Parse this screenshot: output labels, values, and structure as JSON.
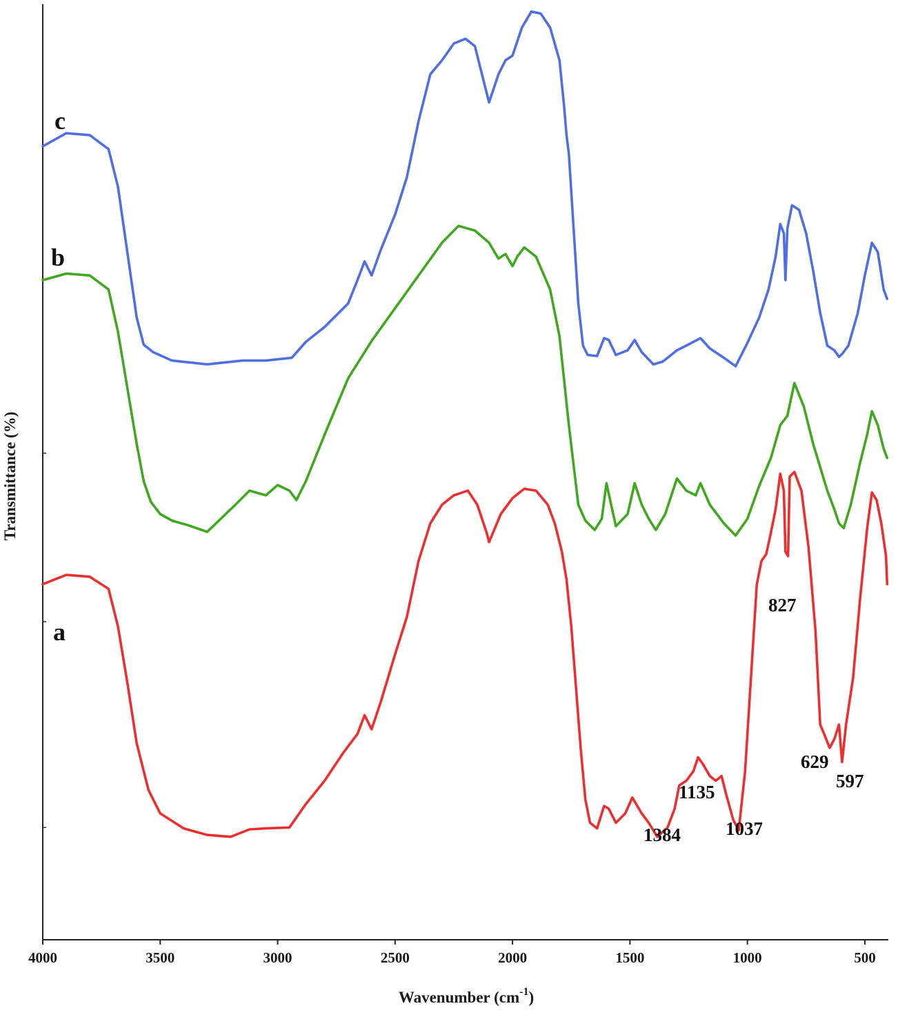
{
  "chart_data": {
    "type": "line",
    "xlabel": "Wavenumber (cm",
    "xlabel_sup": "-1",
    "xlabel_end": ")",
    "ylabel": "Transmittance (%)",
    "xlim": [
      4000,
      400
    ],
    "x_reversed": true,
    "xticks": [
      4000,
      3500,
      3000,
      2500,
      2000,
      1500,
      1000,
      500
    ],
    "xtick_labels": [
      "4000",
      "3500",
      "3000",
      "2500",
      "2000",
      "1500",
      "1000",
      "500"
    ],
    "ylim": [
      0,
      100
    ],
    "grid": false,
    "series": [
      {
        "name": "c",
        "color": "#4f6ee6",
        "points": [
          [
            4000,
            84.8
          ],
          [
            3900,
            86.2
          ],
          [
            3800,
            86.0
          ],
          [
            3720,
            84.5
          ],
          [
            3680,
            80.5
          ],
          [
            3640,
            73.5
          ],
          [
            3600,
            66.5
          ],
          [
            3570,
            63.6
          ],
          [
            3530,
            62.8
          ],
          [
            3450,
            61.9
          ],
          [
            3300,
            61.5
          ],
          [
            3150,
            61.9
          ],
          [
            3050,
            61.9
          ],
          [
            2940,
            62.2
          ],
          [
            2880,
            63.9
          ],
          [
            2800,
            65.5
          ],
          [
            2700,
            68.0
          ],
          [
            2660,
            70.5
          ],
          [
            2630,
            72.5
          ],
          [
            2600,
            71.0
          ],
          [
            2560,
            73.8
          ],
          [
            2500,
            77.5
          ],
          [
            2450,
            81.5
          ],
          [
            2400,
            87.5
          ],
          [
            2350,
            92.5
          ],
          [
            2300,
            94.0
          ],
          [
            2250,
            95.8
          ],
          [
            2200,
            96.3
          ],
          [
            2160,
            95.5
          ],
          [
            2120,
            91.5
          ],
          [
            2100,
            89.5
          ],
          [
            2060,
            92.5
          ],
          [
            2030,
            94.0
          ],
          [
            2000,
            94.5
          ],
          [
            1960,
            97.5
          ],
          [
            1920,
            99.2
          ],
          [
            1880,
            99.0
          ],
          [
            1840,
            97.5
          ],
          [
            1800,
            94.0
          ],
          [
            1780,
            89.0
          ],
          [
            1770,
            86.0
          ],
          [
            1760,
            84.0
          ],
          [
            1740,
            76.0
          ],
          [
            1720,
            68.0
          ],
          [
            1700,
            63.5
          ],
          [
            1680,
            62.5
          ],
          [
            1640,
            62.4
          ],
          [
            1610,
            64.3
          ],
          [
            1590,
            64.1
          ],
          [
            1560,
            62.5
          ],
          [
            1510,
            63.0
          ],
          [
            1480,
            64.1
          ],
          [
            1450,
            62.8
          ],
          [
            1400,
            61.5
          ],
          [
            1360,
            61.8
          ],
          [
            1300,
            63.0
          ],
          [
            1260,
            63.5
          ],
          [
            1200,
            64.3
          ],
          [
            1160,
            63.2
          ],
          [
            1100,
            62.2
          ],
          [
            1050,
            61.3
          ],
          [
            1000,
            63.8
          ],
          [
            950,
            66.5
          ],
          [
            910,
            69.5
          ],
          [
            880,
            73.0
          ],
          [
            860,
            76.5
          ],
          [
            845,
            75.5
          ],
          [
            838,
            70.5
          ],
          [
            830,
            76.0
          ],
          [
            810,
            78.5
          ],
          [
            780,
            78.0
          ],
          [
            750,
            75.5
          ],
          [
            720,
            71.5
          ],
          [
            690,
            67.0
          ],
          [
            660,
            63.5
          ],
          [
            630,
            63.0
          ],
          [
            610,
            62.3
          ],
          [
            597,
            62.6
          ],
          [
            570,
            63.5
          ],
          [
            530,
            67.0
          ],
          [
            500,
            71.0
          ],
          [
            470,
            74.5
          ],
          [
            445,
            73.5
          ],
          [
            420,
            69.5
          ],
          [
            405,
            68.5
          ]
        ]
      },
      {
        "name": "b",
        "color": "#3fa81e",
        "points": [
          [
            4000,
            70.5
          ],
          [
            3900,
            71.2
          ],
          [
            3800,
            71.0
          ],
          [
            3720,
            69.5
          ],
          [
            3680,
            65.0
          ],
          [
            3640,
            59.0
          ],
          [
            3600,
            53.0
          ],
          [
            3570,
            49.0
          ],
          [
            3540,
            46.8
          ],
          [
            3500,
            45.5
          ],
          [
            3450,
            44.8
          ],
          [
            3380,
            44.3
          ],
          [
            3300,
            43.6
          ],
          [
            3250,
            44.8
          ],
          [
            3180,
            46.5
          ],
          [
            3120,
            48.0
          ],
          [
            3050,
            47.5
          ],
          [
            3000,
            48.6
          ],
          [
            2950,
            48.0
          ],
          [
            2920,
            47.0
          ],
          [
            2880,
            49.0
          ],
          [
            2800,
            54.0
          ],
          [
            2700,
            60.0
          ],
          [
            2600,
            64.0
          ],
          [
            2500,
            67.5
          ],
          [
            2400,
            71.0
          ],
          [
            2300,
            74.5
          ],
          [
            2230,
            76.3
          ],
          [
            2160,
            75.8
          ],
          [
            2100,
            74.5
          ],
          [
            2060,
            72.8
          ],
          [
            2030,
            73.3
          ],
          [
            2000,
            72.0
          ],
          [
            1980,
            73.0
          ],
          [
            1950,
            74.0
          ],
          [
            1900,
            73.0
          ],
          [
            1840,
            69.5
          ],
          [
            1800,
            64.5
          ],
          [
            1760,
            55.0
          ],
          [
            1720,
            46.5
          ],
          [
            1690,
            44.8
          ],
          [
            1650,
            43.8
          ],
          [
            1620,
            45.0
          ],
          [
            1600,
            48.8
          ],
          [
            1580,
            46.5
          ],
          [
            1560,
            44.2
          ],
          [
            1510,
            45.5
          ],
          [
            1480,
            48.8
          ],
          [
            1450,
            46.5
          ],
          [
            1420,
            45.0
          ],
          [
            1390,
            43.8
          ],
          [
            1350,
            45.5
          ],
          [
            1300,
            49.3
          ],
          [
            1260,
            48.0
          ],
          [
            1220,
            47.5
          ],
          [
            1200,
            48.8
          ],
          [
            1160,
            46.5
          ],
          [
            1100,
            44.5
          ],
          [
            1050,
            43.2
          ],
          [
            1000,
            45.0
          ],
          [
            950,
            48.5
          ],
          [
            900,
            51.5
          ],
          [
            860,
            55.0
          ],
          [
            830,
            56.0
          ],
          [
            800,
            59.5
          ],
          [
            760,
            57.0
          ],
          [
            720,
            53.0
          ],
          [
            690,
            50.5
          ],
          [
            660,
            48.0
          ],
          [
            630,
            46.0
          ],
          [
            610,
            44.5
          ],
          [
            590,
            44.0
          ],
          [
            560,
            46.5
          ],
          [
            520,
            51.0
          ],
          [
            490,
            54.0
          ],
          [
            470,
            56.5
          ],
          [
            445,
            55.0
          ],
          [
            420,
            52.5
          ],
          [
            405,
            51.5
          ]
        ]
      },
      {
        "name": "a",
        "color": "#ee2e2e",
        "points": [
          [
            4000,
            38.0
          ],
          [
            3900,
            39.0
          ],
          [
            3800,
            38.8
          ],
          [
            3720,
            37.5
          ],
          [
            3680,
            33.5
          ],
          [
            3640,
            27.5
          ],
          [
            3600,
            21.0
          ],
          [
            3550,
            16.0
          ],
          [
            3500,
            13.5
          ],
          [
            3400,
            11.9
          ],
          [
            3300,
            11.2
          ],
          [
            3200,
            11.0
          ],
          [
            3120,
            11.8
          ],
          [
            3050,
            11.9
          ],
          [
            2950,
            12.0
          ],
          [
            2880,
            14.5
          ],
          [
            2800,
            17.0
          ],
          [
            2720,
            20.0
          ],
          [
            2660,
            22.0
          ],
          [
            2630,
            24.0
          ],
          [
            2600,
            22.5
          ],
          [
            2560,
            25.5
          ],
          [
            2500,
            30.5
          ],
          [
            2450,
            34.5
          ],
          [
            2400,
            40.5
          ],
          [
            2350,
            44.5
          ],
          [
            2300,
            46.5
          ],
          [
            2250,
            47.5
          ],
          [
            2190,
            48.0
          ],
          [
            2150,
            46.5
          ],
          [
            2110,
            43.5
          ],
          [
            2100,
            42.5
          ],
          [
            2050,
            45.5
          ],
          [
            2000,
            47.2
          ],
          [
            1950,
            48.2
          ],
          [
            1900,
            48.0
          ],
          [
            1850,
            46.5
          ],
          [
            1820,
            44.5
          ],
          [
            1790,
            41.5
          ],
          [
            1770,
            38.5
          ],
          [
            1750,
            33.5
          ],
          [
            1730,
            27.0
          ],
          [
            1710,
            20.5
          ],
          [
            1690,
            15.0
          ],
          [
            1670,
            12.5
          ],
          [
            1640,
            11.9
          ],
          [
            1610,
            14.3
          ],
          [
            1590,
            14.0
          ],
          [
            1560,
            12.5
          ],
          [
            1520,
            13.5
          ],
          [
            1490,
            15.2
          ],
          [
            1450,
            13.5
          ],
          [
            1420,
            12.5
          ],
          [
            1384,
            11.0
          ],
          [
            1340,
            12.0
          ],
          [
            1310,
            14.0
          ],
          [
            1290,
            16.5
          ],
          [
            1260,
            17.0
          ],
          [
            1230,
            18.0
          ],
          [
            1210,
            19.5
          ],
          [
            1190,
            18.8
          ],
          [
            1160,
            17.5
          ],
          [
            1135,
            17.0
          ],
          [
            1110,
            17.5
          ],
          [
            1090,
            15.5
          ],
          [
            1060,
            12.8
          ],
          [
            1037,
            11.7
          ],
          [
            1010,
            18.0
          ],
          [
            980,
            30.0
          ],
          [
            960,
            38.0
          ],
          [
            940,
            40.5
          ],
          [
            920,
            41.2
          ],
          [
            900,
            43.5
          ],
          [
            880,
            46.0
          ],
          [
            860,
            49.8
          ],
          [
            845,
            48.0
          ],
          [
            838,
            41.5
          ],
          [
            827,
            41.0
          ],
          [
            820,
            49.5
          ],
          [
            800,
            50.0
          ],
          [
            770,
            48.0
          ],
          [
            740,
            42.0
          ],
          [
            710,
            33.0
          ],
          [
            690,
            23.0
          ],
          [
            670,
            21.8
          ],
          [
            650,
            20.5
          ],
          [
            629,
            21.5
          ],
          [
            610,
            23.0
          ],
          [
            597,
            19.0
          ],
          [
            580,
            23.0
          ],
          [
            550,
            28.0
          ],
          [
            520,
            36.5
          ],
          [
            490,
            44.0
          ],
          [
            470,
            47.8
          ],
          [
            450,
            47.0
          ],
          [
            430,
            44.5
          ],
          [
            410,
            41.0
          ],
          [
            405,
            38.0
          ]
        ]
      }
    ],
    "curve_labels": [
      "c",
      "b",
      "a"
    ],
    "annotations": [
      "827",
      "629",
      "597",
      "1135",
      "1384",
      "1037"
    ]
  }
}
